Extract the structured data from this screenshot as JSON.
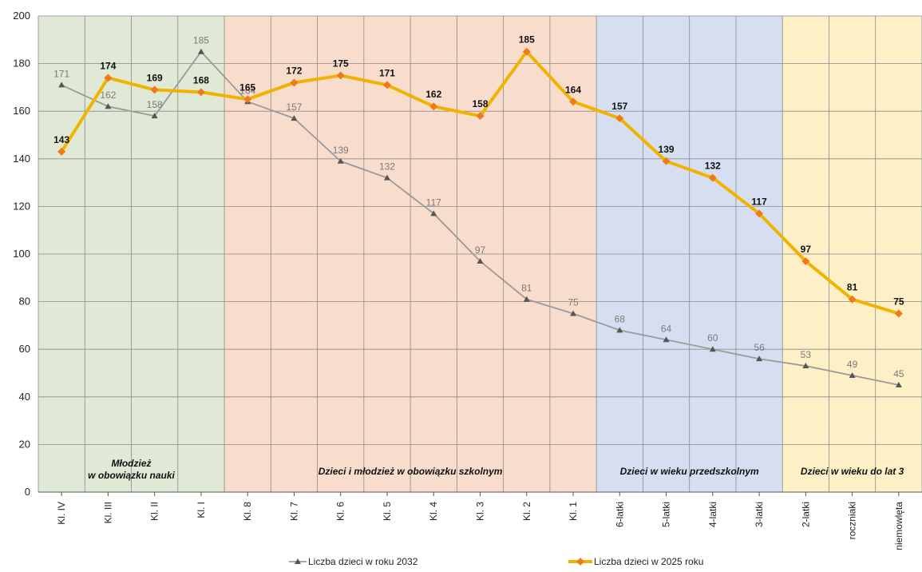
{
  "chart_data": {
    "type": "line",
    "categories": [
      "Kl. IV",
      "Kl. III",
      "Kl. II",
      "Kl. I",
      "Kl. 8",
      "Kl. 7",
      "Kl. 6",
      "Kl. 5",
      "Kl. 4",
      "Kl. 3",
      "Kl. 2",
      "Kl. 1",
      "6-latki",
      "5-latki",
      "4-latki",
      "3-latki",
      "2-latki",
      "roczniaki",
      "niemowlęta"
    ],
    "ylim": [
      0,
      200
    ],
    "yticks": [
      "0",
      "20",
      "40",
      "60",
      "80",
      "100",
      "120",
      "140",
      "160",
      "180",
      "200"
    ],
    "grid": true,
    "legend_position": "bottom",
    "series": [
      {
        "name": "Liczba dzieci w roku 2032",
        "color": "#9a9a9a",
        "marker": "triangle",
        "values": [
          171,
          162,
          158,
          185,
          164,
          157,
          139,
          132,
          117,
          97,
          81,
          75,
          68,
          64,
          60,
          56,
          53,
          49,
          45
        ],
        "labels": [
          "171",
          "162",
          "158",
          "185",
          "164",
          "157",
          "139",
          "132",
          "117",
          "97",
          "81",
          "75",
          "68",
          "64",
          "60",
          "56",
          "53",
          "49",
          "45"
        ]
      },
      {
        "name": "Liczba dzieci w 2025 roku",
        "color": "#f0b400",
        "marker": "diamond",
        "marker_color": "#f07a1a",
        "values": [
          143,
          174,
          169,
          168,
          165,
          172,
          175,
          171,
          162,
          158,
          185,
          164,
          157,
          139,
          132,
          117,
          97,
          81,
          75
        ],
        "labels": [
          "143",
          "174",
          "169",
          "168",
          "165",
          "172",
          "175",
          "171",
          "162",
          "158",
          "185",
          "164",
          "157",
          "139",
          "132",
          "117",
          "97",
          "81",
          "75"
        ]
      }
    ],
    "regions": [
      {
        "label_lines": [
          "Młodzież",
          "w obowiązku nauki"
        ],
        "color": "#dfe9d5",
        "start_index": 0,
        "end_index": 3
      },
      {
        "label_lines": [
          "Dzieci i młodzież w obowiązku szkolnym"
        ],
        "color": "#f8dccc",
        "start_index": 4,
        "end_index": 11
      },
      {
        "label_lines": [
          "Dzieci w wieku przedszkolnym"
        ],
        "color": "#d6dff2",
        "start_index": 12,
        "end_index": 15
      },
      {
        "label_lines": [
          "Dzieci w wieku do lat 3"
        ],
        "color": "#fdefc6",
        "start_index": 16,
        "end_index": 18
      }
    ]
  }
}
